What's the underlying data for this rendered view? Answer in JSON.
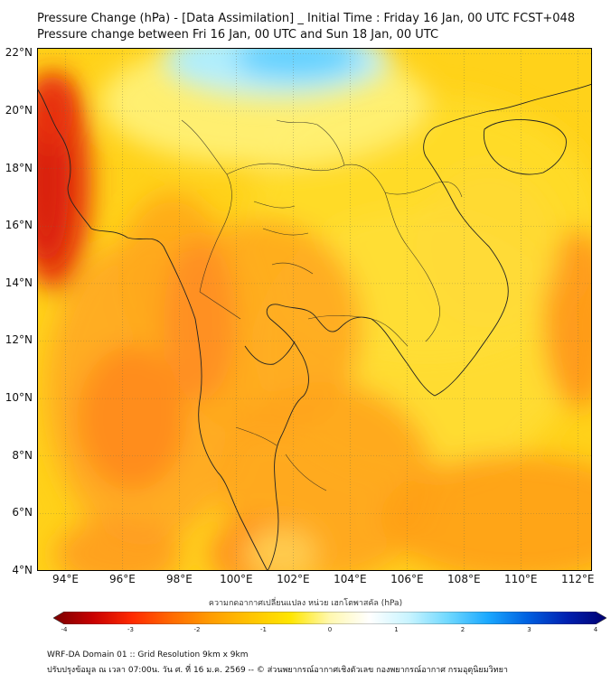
{
  "title": "Pressure Change (hPa) - [Data Assimilation] _ Initial Time : Friday 16 Jan, 00 UTC FCST+048",
  "subtitle": "Pressure change between Fri 16 Jan, 00 UTC and Sun 18 Jan, 00 UTC",
  "lat_labels": [
    "22°N",
    "20°N",
    "18°N",
    "16°N",
    "14°N",
    "12°N",
    "10°N",
    "8°N",
    "6°N",
    "4°N"
  ],
  "lon_labels": [
    "94°E",
    "96°E",
    "98°E",
    "100°E",
    "102°E",
    "104°E",
    "106°E",
    "108°E",
    "110°E",
    "112°E"
  ],
  "colorbar": {
    "title": "ความกดอากาศเปลี่ยนแปลง หน่วย เฮกโตพาสคัล (hPa)",
    "ticks": [
      "-4",
      "-3",
      "-2",
      "-1",
      "0",
      "1",
      "2",
      "3",
      "4"
    ],
    "range": [
      -4,
      4
    ],
    "colors": [
      "#7a0000",
      "#c80000",
      "#ff2a00",
      "#ff6a00",
      "#ff9d00",
      "#ffc400",
      "#ffe600",
      "#fff8b0",
      "#ffffff",
      "#c8f4ff",
      "#6fd8ff",
      "#1aa8ff",
      "#0060e0",
      "#0020b0",
      "#000070"
    ]
  },
  "footer": {
    "line1": "WRF-DA Domain 01 :: Grid Resolution 9km x 9km",
    "line2": "ปรับปรุงข้อมูล ณ เวลา 07:00น. วัน ศ. ที่ 16 ม.ค. 2569 -- © ส่วนพยากรณ์อากาศเชิงตัวเลข กองพยากรณ์อากาศ กรมอุตุนิยมวิทยา"
  },
  "map": {
    "extent_lon": [
      93,
      112.5
    ],
    "extent_lat": [
      4,
      22.2
    ],
    "background_color": "#ffd21a",
    "regions": [
      {
        "name": "strong-fall-west-coast",
        "lon": 93.2,
        "lat": 18.5,
        "level": -3.3
      },
      {
        "name": "strong-fall-west-coast-2",
        "lon": 93.3,
        "lat": 20.5,
        "level": -3.0
      },
      {
        "name": "fall-andaman",
        "lon": 96.1,
        "lat": 9.2,
        "level": -2.2
      },
      {
        "name": "fall-myanmar-coast",
        "lon": 98.3,
        "lat": 15.0,
        "level": -2.0
      },
      {
        "name": "fall-central-thai",
        "lon": 100.3,
        "lat": 13.8,
        "level": -1.8
      },
      {
        "name": "fall-south",
        "lon": 99.5,
        "lat": 6.0,
        "level": -1.9
      },
      {
        "name": "fall-southeast",
        "lon": 111.5,
        "lat": 4.4,
        "level": -2.2
      },
      {
        "name": "fall-east-edge",
        "lon": 112.3,
        "lat": 14.0,
        "level": -1.9
      },
      {
        "name": "rise-north",
        "lon": 101.5,
        "lat": 21.8,
        "level": 1.2
      },
      {
        "name": "rise-north-2",
        "lon": 99.8,
        "lat": 21.7,
        "level": 0.6
      }
    ]
  }
}
